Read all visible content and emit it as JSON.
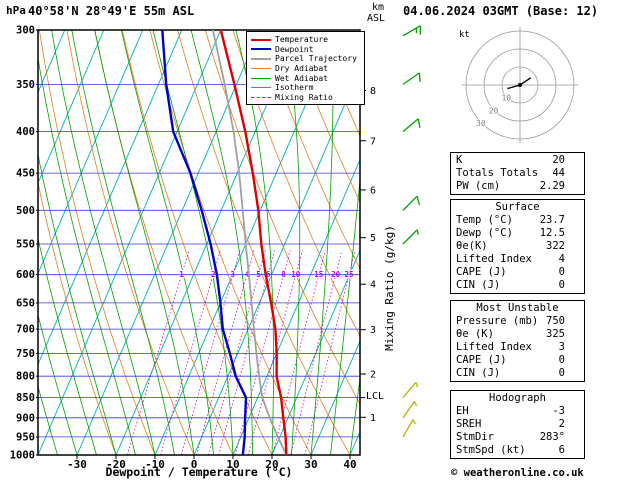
{
  "header": {
    "station": "40°58'N 28°49'E 55m ASL",
    "datetime": "04.06.2024 03GMT (Base: 12)",
    "pressure_unit_label": "hPa",
    "km_label": "km",
    "asl_label": "ASL",
    "kt_label": "kt",
    "copyright": "© weatheronline.co.uk"
  },
  "axes": {
    "pressure_ticks": [
      300,
      350,
      400,
      450,
      500,
      550,
      600,
      650,
      700,
      750,
      800,
      850,
      900,
      950,
      1000
    ],
    "temp_ticks": [
      -30,
      -20,
      -10,
      0,
      10,
      20,
      30,
      40
    ],
    "x_axis_label": "Dewpoint / Temperature (°C)",
    "km_ticks": [
      1,
      2,
      3,
      4,
      5,
      6,
      7,
      8
    ],
    "lcl_label": "LCL",
    "mixing_ratio_axis_label": "Mixing Ratio (g/kg)"
  },
  "legend": [
    {
      "label": "Temperature",
      "color": "#dd0000",
      "thick": 2,
      "dash": false
    },
    {
      "label": "Dewpoint",
      "color": "#0000cc",
      "thick": 2,
      "dash": false
    },
    {
      "label": "Parcel Trajectory",
      "color": "#a0a0a0",
      "thick": 2,
      "dash": false
    },
    {
      "label": "Dry Adiabat",
      "color": "#e08020",
      "thick": 1,
      "dash": false
    },
    {
      "label": "Wet Adiabat",
      "color": "#00a000",
      "thick": 1,
      "dash": false
    },
    {
      "label": "Isotherm",
      "color": "#00b0b0",
      "thick": 1,
      "dash": false
    },
    {
      "label": "Mixing Ratio",
      "color": "#c800c8",
      "thick": 1,
      "dash": true
    }
  ],
  "chart_data": {
    "type": "skewt-logp",
    "pressure_axis": {
      "min": 300,
      "max": 1000,
      "scale": "log",
      "unit": "hPa"
    },
    "temp_axis_bottom": {
      "min": -40,
      "max": 42,
      "unit": "°C"
    },
    "colors": {
      "temperature": "#dd0000",
      "dewpoint": "#0000cc",
      "parcel": "#a0a0a0",
      "dry_adiabat": "#e08020",
      "wet_adiabat": "#00a000",
      "isotherm": "#00b0b0",
      "mixing_ratio": "#c800c8",
      "gridline": "#3838d0",
      "barb_upper": "#00a000",
      "barb_low": "#b4b400"
    },
    "mixing_ratio_lines_g_per_kg": [
      1,
      2,
      3,
      4,
      5,
      6,
      8,
      10,
      15,
      20,
      25
    ],
    "temperature_profile": {
      "pressure_hpa": [
        1000,
        950,
        900,
        850,
        800,
        750,
        700,
        650,
        600,
        550,
        500,
        450,
        400,
        350,
        300
      ],
      "temp_c": [
        23.7,
        21.5,
        18.8,
        16.0,
        12.5,
        10.0,
        7.0,
        3.0,
        -1.5,
        -6.0,
        -10.5,
        -16.0,
        -22.5,
        -30.5,
        -40.0
      ]
    },
    "dewpoint_profile": {
      "pressure_hpa": [
        1000,
        950,
        900,
        850,
        800,
        750,
        700,
        650,
        600,
        550,
        500,
        450,
        400,
        350,
        300
      ],
      "temp_c": [
        12.5,
        11.0,
        9.0,
        7.0,
        2.0,
        -2.0,
        -6.5,
        -10.0,
        -14.0,
        -19.0,
        -25.0,
        -32.0,
        -41.0,
        -48.0,
        -55.0
      ]
    },
    "parcel_profile": {
      "pressure_hpa": [
        1000,
        950,
        900,
        850,
        800,
        750,
        700,
        650,
        600,
        550,
        500,
        450,
        400,
        350,
        300
      ],
      "temp_c": [
        23.7,
        19.5,
        15.3,
        11.2,
        8.0,
        4.8,
        1.5,
        -2.0,
        -5.8,
        -10.0,
        -14.5,
        -19.5,
        -25.5,
        -33.0,
        -42.0
      ]
    },
    "lcl_pressure_hpa": 850,
    "wind_barbs": [
      {
        "pressure_hpa": 305,
        "dir_deg": 60,
        "speed_kt": 15,
        "color": "#00a000"
      },
      {
        "pressure_hpa": 350,
        "dir_deg": 55,
        "speed_kt": 10,
        "color": "#00a000"
      },
      {
        "pressure_hpa": 400,
        "dir_deg": 50,
        "speed_kt": 10,
        "color": "#00a000"
      },
      {
        "pressure_hpa": 500,
        "dir_deg": 45,
        "speed_kt": 10,
        "color": "#00a000"
      },
      {
        "pressure_hpa": 550,
        "dir_deg": 45,
        "speed_kt": 5,
        "color": "#00a000"
      },
      {
        "pressure_hpa": 850,
        "dir_deg": 40,
        "speed_kt": 5,
        "color": "#b4b400"
      },
      {
        "pressure_hpa": 900,
        "dir_deg": 35,
        "speed_kt": 5,
        "color": "#b4b400"
      },
      {
        "pressure_hpa": 950,
        "dir_deg": 30,
        "speed_kt": 5,
        "color": "#b4b400"
      }
    ],
    "hodograph": {
      "unit": "kt",
      "rings_kt": [
        10,
        20,
        30
      ],
      "trace_uv_kt": [
        [
          -7,
          -2
        ],
        [
          0,
          0
        ],
        [
          6,
          4
        ]
      ],
      "marker_uv_kt": [
        0,
        0
      ]
    }
  },
  "tables": [
    {
      "title": "",
      "rows": [
        [
          "K",
          "20"
        ],
        [
          "Totals Totals",
          "44"
        ],
        [
          "PW (cm)",
          "2.29"
        ]
      ]
    },
    {
      "title": "Surface",
      "rows": [
        [
          "Temp (°C)",
          "23.7"
        ],
        [
          "Dewp (°C)",
          "12.5"
        ],
        [
          "θe(K)",
          "322"
        ],
        [
          "Lifted Index",
          "4"
        ],
        [
          "CAPE (J)",
          "0"
        ],
        [
          "CIN (J)",
          "0"
        ]
      ]
    },
    {
      "title": "Most Unstable",
      "rows": [
        [
          "Pressure (mb)",
          "750"
        ],
        [
          "θe (K)",
          "325"
        ],
        [
          "Lifted Index",
          "3"
        ],
        [
          "CAPE (J)",
          "0"
        ],
        [
          "CIN (J)",
          "0"
        ]
      ]
    },
    {
      "title": "Hodograph",
      "rows": [
        [
          "EH",
          "-3"
        ],
        [
          "SREH",
          "2"
        ],
        [
          "StmDir",
          "283°"
        ],
        [
          "StmSpd (kt)",
          "6"
        ]
      ]
    }
  ]
}
